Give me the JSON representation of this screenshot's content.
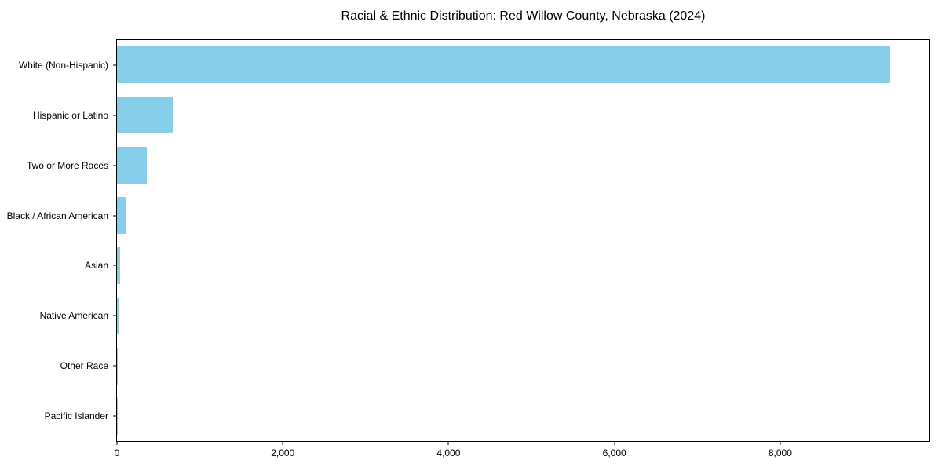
{
  "title": "Racial & Ethnic Distribution: Red Willow County, Nebraska (2024)",
  "chart_data": {
    "type": "bar",
    "orientation": "horizontal",
    "title": "Racial & Ethnic Distribution: Red Willow County, Nebraska (2024)",
    "categories": [
      "White (Non-Hispanic)",
      "Hispanic or Latino",
      "Two or More Races",
      "Black / African American",
      "Asian",
      "Native American",
      "Other Race",
      "Pacific Islander"
    ],
    "values": [
      9330,
      670,
      358,
      110,
      42,
      15,
      5,
      2
    ],
    "xlabel": "",
    "ylabel": "",
    "xlim": [
      0,
      9800
    ],
    "x_ticks": [
      0,
      2000,
      4000,
      6000,
      8000
    ],
    "x_tick_labels": [
      "0",
      "2,000",
      "4,000",
      "6,000",
      "8,000"
    ],
    "bar_color": "#87CEEB",
    "spine_color": "#000000",
    "text_color": "#000000",
    "background_color": "#ffffff",
    "grid": false,
    "legend": "none"
  }
}
